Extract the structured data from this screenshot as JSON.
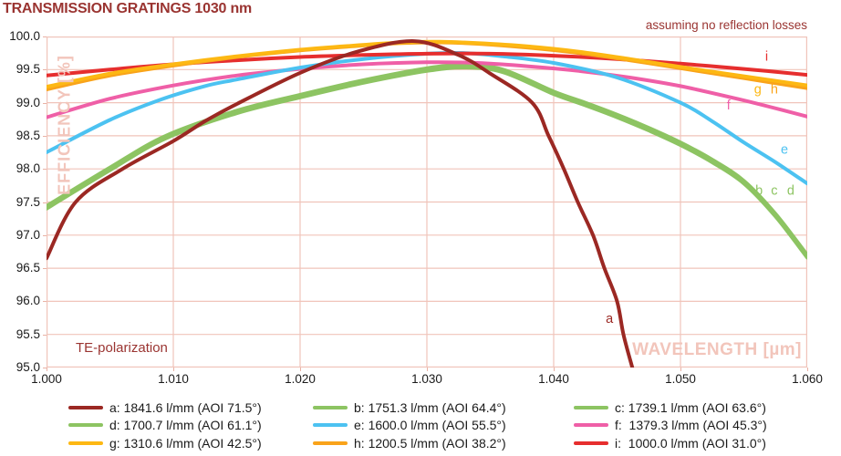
{
  "title": "TRANSMISSION GRATINGS 1030 nm",
  "note_top_right": "assuming no reflection losses",
  "plot": {
    "xlabel": "WAVELENGTH [µm]",
    "ylabel": "EFFICIENCY [%]",
    "annotation_bottom_left": "TE-polarization",
    "x_ticks": [
      "1.000",
      "1.010",
      "1.020",
      "1.030",
      "1.040",
      "1.050",
      "1.060"
    ],
    "y_ticks": [
      "100.0",
      "99.5",
      "99.0",
      "98.5",
      "98.0",
      "97.5",
      "97.0",
      "96.5",
      "96.0",
      "95.5",
      "95.0"
    ],
    "grid_color": "#f0c4ba",
    "label_color": "#f2c5bb",
    "accent_color": "#9a3431"
  },
  "chart_data": {
    "type": "line",
    "title": "TRANSMISSION GRATINGS 1030 nm",
    "xlabel": "WAVELENGTH [µm]",
    "ylabel": "EFFICIENCY [%]",
    "xlim": [
      1.0,
      1.06
    ],
    "ylim": [
      95.0,
      100.0
    ],
    "x_tick_step": 0.01,
    "y_tick_step": 0.5,
    "grid": true,
    "legend_position": "bottom",
    "draw_order": [
      "d",
      "c",
      "b",
      "f",
      "e",
      "i",
      "h",
      "g",
      "a"
    ],
    "series": [
      {
        "id": "a",
        "name": "a: 1841.6 l/mm (AOI 71.5°)",
        "color": "#9b2823",
        "points": [
          [
            1.0,
            96.65
          ],
          [
            1.0023,
            97.5
          ],
          [
            1.006,
            98.0
          ],
          [
            1.01,
            98.42
          ],
          [
            1.0125,
            98.72
          ],
          [
            1.015,
            98.98
          ],
          [
            1.02,
            99.45
          ],
          [
            1.0245,
            99.77
          ],
          [
            1.029,
            99.93
          ],
          [
            1.0325,
            99.72
          ],
          [
            1.035,
            99.44
          ],
          [
            1.0383,
            99.0
          ],
          [
            1.0396,
            98.5
          ],
          [
            1.0408,
            98.0
          ],
          [
            1.0419,
            97.5
          ],
          [
            1.0431,
            97.0
          ],
          [
            1.044,
            96.5
          ],
          [
            1.045,
            96.0
          ],
          [
            1.0455,
            95.5
          ],
          [
            1.0462,
            95.0
          ]
        ]
      },
      {
        "id": "b",
        "name": "b: 1751.3 l/mm (AOI 64.4°)",
        "color": "#8dc462",
        "points": [
          [
            1.0,
            97.44
          ],
          [
            1.005,
            98.02
          ],
          [
            1.0094,
            98.5
          ],
          [
            1.015,
            98.88
          ],
          [
            1.02,
            99.12
          ],
          [
            1.025,
            99.34
          ],
          [
            1.03,
            99.52
          ],
          [
            1.033,
            99.57
          ],
          [
            1.036,
            99.5
          ],
          [
            1.04,
            99.17
          ],
          [
            1.0425,
            99.0
          ],
          [
            1.045,
            98.82
          ],
          [
            1.0475,
            98.62
          ],
          [
            1.05,
            98.4
          ],
          [
            1.0525,
            98.14
          ],
          [
            1.055,
            97.82
          ],
          [
            1.0575,
            97.32
          ],
          [
            1.06,
            96.7
          ]
        ]
      },
      {
        "id": "c",
        "name": "c: 1739.1 l/mm (AOI 63.6°)",
        "color": "#8dc462",
        "points": [
          [
            1.0,
            97.42
          ],
          [
            1.005,
            98.0
          ],
          [
            1.0094,
            98.48
          ],
          [
            1.015,
            98.86
          ],
          [
            1.02,
            99.1
          ],
          [
            1.025,
            99.32
          ],
          [
            1.03,
            99.5
          ],
          [
            1.033,
            99.55
          ],
          [
            1.036,
            99.48
          ],
          [
            1.04,
            99.15
          ],
          [
            1.0425,
            98.98
          ],
          [
            1.045,
            98.8
          ],
          [
            1.0475,
            98.6
          ],
          [
            1.05,
            98.38
          ],
          [
            1.0525,
            98.12
          ],
          [
            1.055,
            97.8
          ],
          [
            1.0575,
            97.3
          ],
          [
            1.06,
            96.68
          ]
        ]
      },
      {
        "id": "d",
        "name": "d: 1700.7 l/mm (AOI 61.1°)",
        "color": "#8dc462",
        "points": [
          [
            1.0,
            97.4
          ],
          [
            1.005,
            97.98
          ],
          [
            1.0094,
            98.46
          ],
          [
            1.015,
            98.84
          ],
          [
            1.02,
            99.08
          ],
          [
            1.025,
            99.3
          ],
          [
            1.03,
            99.48
          ],
          [
            1.033,
            99.53
          ],
          [
            1.036,
            99.46
          ],
          [
            1.04,
            99.13
          ],
          [
            1.0425,
            98.96
          ],
          [
            1.045,
            98.78
          ],
          [
            1.0475,
            98.58
          ],
          [
            1.05,
            98.36
          ],
          [
            1.0525,
            98.1
          ],
          [
            1.055,
            97.78
          ],
          [
            1.0575,
            97.28
          ],
          [
            1.06,
            96.66
          ]
        ]
      },
      {
        "id": "e",
        "name": "e: 1600.0 l/mm (AOI 55.5°)",
        "color": "#4cc2f1",
        "points": [
          [
            1.0,
            98.25
          ],
          [
            1.005,
            98.74
          ],
          [
            1.0089,
            99.04
          ],
          [
            1.0125,
            99.25
          ],
          [
            1.015,
            99.35
          ],
          [
            1.02,
            99.53
          ],
          [
            1.025,
            99.66
          ],
          [
            1.03,
            99.74
          ],
          [
            1.033,
            99.75
          ],
          [
            1.036,
            99.7
          ],
          [
            1.04,
            99.6
          ],
          [
            1.045,
            99.38
          ],
          [
            1.05,
            99.0
          ],
          [
            1.0525,
            98.72
          ],
          [
            1.055,
            98.4
          ],
          [
            1.0575,
            98.1
          ],
          [
            1.06,
            97.78
          ]
        ]
      },
      {
        "id": "f",
        "name": "f: 1379.3 l/mm (AOI 45.3°)",
        "color": "#ef5fa7",
        "points": [
          [
            1.0,
            98.78
          ],
          [
            1.005,
            99.06
          ],
          [
            1.01,
            99.26
          ],
          [
            1.015,
            99.41
          ],
          [
            1.02,
            99.51
          ],
          [
            1.025,
            99.58
          ],
          [
            1.03,
            99.61
          ],
          [
            1.034,
            99.6
          ],
          [
            1.038,
            99.55
          ],
          [
            1.042,
            99.48
          ],
          [
            1.046,
            99.38
          ],
          [
            1.05,
            99.25
          ],
          [
            1.054,
            99.08
          ],
          [
            1.057,
            98.94
          ],
          [
            1.06,
            98.79
          ]
        ]
      },
      {
        "id": "g",
        "name": "g: 1310.6 l/mm (AOI 42.5°)",
        "color": "#fdb813",
        "points": [
          [
            1.0,
            99.24
          ],
          [
            1.005,
            99.44
          ],
          [
            1.01,
            99.58
          ],
          [
            1.015,
            99.7
          ],
          [
            1.02,
            99.8
          ],
          [
            1.024,
            99.86
          ],
          [
            1.028,
            99.91
          ],
          [
            1.031,
            99.92
          ],
          [
            1.034,
            99.9
          ],
          [
            1.038,
            99.85
          ],
          [
            1.042,
            99.77
          ],
          [
            1.046,
            99.66
          ],
          [
            1.05,
            99.54
          ],
          [
            1.055,
            99.4
          ],
          [
            1.06,
            99.26
          ]
        ]
      },
      {
        "id": "h",
        "name": "h: 1200.5 l/mm (AOI 38.2°)",
        "color": "#f9a31a",
        "points": [
          [
            1.0,
            99.2
          ],
          [
            1.005,
            99.41
          ],
          [
            1.01,
            99.56
          ],
          [
            1.015,
            99.69
          ],
          [
            1.02,
            99.79
          ],
          [
            1.024,
            99.85
          ],
          [
            1.028,
            99.9
          ],
          [
            1.031,
            99.91
          ],
          [
            1.034,
            99.89
          ],
          [
            1.038,
            99.83
          ],
          [
            1.042,
            99.75
          ],
          [
            1.046,
            99.64
          ],
          [
            1.05,
            99.52
          ],
          [
            1.055,
            99.37
          ],
          [
            1.06,
            99.22
          ]
        ]
      },
      {
        "id": "i",
        "name": "i: 1000.0 l/mm (AOI 31.0°)",
        "color": "#e62e2e",
        "points": [
          [
            1.0,
            99.41
          ],
          [
            1.005,
            99.5
          ],
          [
            1.01,
            99.58
          ],
          [
            1.015,
            99.64
          ],
          [
            1.02,
            99.69
          ],
          [
            1.025,
            99.72
          ],
          [
            1.03,
            99.74
          ],
          [
            1.035,
            99.74
          ],
          [
            1.04,
            99.71
          ],
          [
            1.045,
            99.66
          ],
          [
            1.05,
            99.59
          ],
          [
            1.055,
            99.51
          ],
          [
            1.06,
            99.42
          ]
        ]
      }
    ],
    "curve_labels": [
      {
        "text": "a",
        "x": 1.0444,
        "y": 95.73,
        "color": "#9b2823"
      },
      {
        "text": "b",
        "x": 1.0562,
        "y": 97.66,
        "color": "#8dc462"
      },
      {
        "text": "c",
        "x": 1.0574,
        "y": 97.66,
        "color": "#8dc462"
      },
      {
        "text": "d",
        "x": 1.0587,
        "y": 97.66,
        "color": "#8dc462"
      },
      {
        "text": "e",
        "x": 1.0582,
        "y": 98.28,
        "color": "#4cc2f1"
      },
      {
        "text": "f",
        "x": 1.0538,
        "y": 98.95,
        "color": "#ef5fa7"
      },
      {
        "text": "g",
        "x": 1.0561,
        "y": 99.19,
        "color": "#fdb813"
      },
      {
        "text": "h",
        "x": 1.0574,
        "y": 99.19,
        "color": "#f9a31a"
      },
      {
        "text": "i",
        "x": 1.0568,
        "y": 99.69,
        "color": "#e62e2e"
      }
    ]
  },
  "legend": {
    "items": [
      {
        "key": "a",
        "color": "#9b2823",
        "label": "a: 1841.6 l/mm (AOI 71.5°)"
      },
      {
        "key": "b",
        "color": "#8dc462",
        "label": "b: 1751.3 l/mm (AOI 64.4°)"
      },
      {
        "key": "c",
        "color": "#8dc462",
        "label": "c: 1739.1 l/mm (AOI 63.6°)"
      },
      {
        "key": "d",
        "color": "#8dc462",
        "label": "d: 1700.7 l/mm (AOI 61.1°)"
      },
      {
        "key": "e",
        "color": "#4cc2f1",
        "label": "e: 1600.0 l/mm (AOI 55.5°)"
      },
      {
        "key": "f",
        "color": "#ef5fa7",
        "label": "f:  1379.3 l/mm (AOI 45.3°)"
      },
      {
        "key": "g",
        "color": "#fdb813",
        "label": "g: 1310.6 l/mm (AOI 42.5°)"
      },
      {
        "key": "h",
        "color": "#f9a31a",
        "label": "h: 1200.5 l/mm (AOI 38.2°)"
      },
      {
        "key": "i",
        "color": "#e62e2e",
        "label": "i:  1000.0 l/mm (AOI 31.0°)"
      }
    ]
  }
}
